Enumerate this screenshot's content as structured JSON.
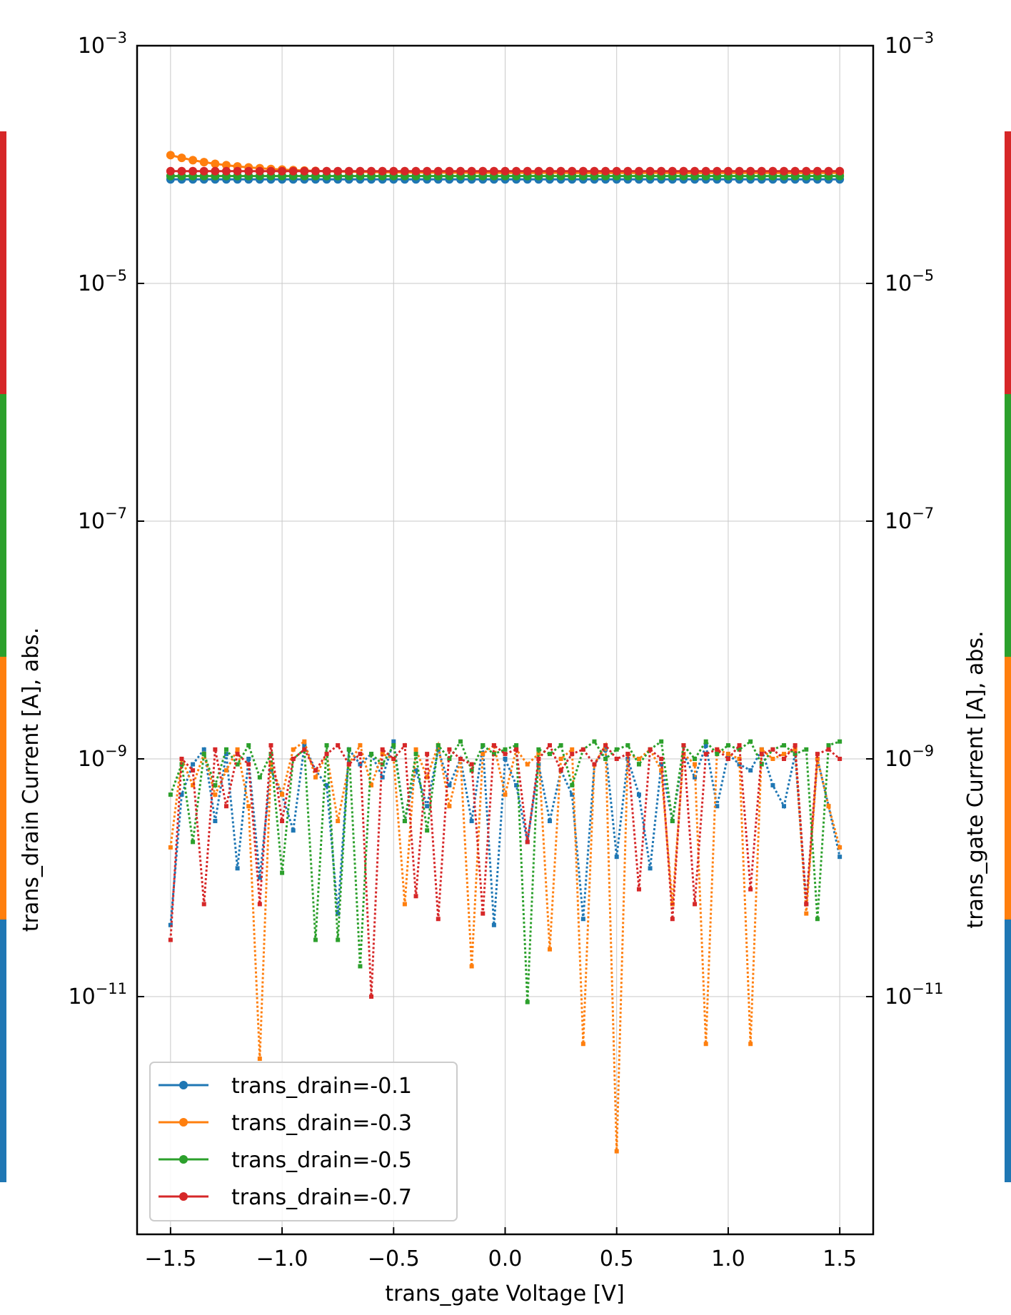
{
  "chart_data": {
    "type": "line",
    "xlabel": "trans_gate Voltage [V]",
    "ylabel_left": "trans_drain Current [A], abs.",
    "ylabel_right": "trans_gate Current [A], abs.",
    "xlim": [
      -1.65,
      1.65
    ],
    "ylim": [
      1e-13,
      0.001
    ],
    "y_scale": "log",
    "x_ticks": [
      {
        "value": -1.5,
        "label": "−1.5"
      },
      {
        "value": -1.0,
        "label": "−1.0"
      },
      {
        "value": -0.5,
        "label": "−0.5"
      },
      {
        "value": 0.0,
        "label": "0.0"
      },
      {
        "value": 0.5,
        "label": "0.5"
      },
      {
        "value": 1.0,
        "label": "1.0"
      },
      {
        "value": 1.5,
        "label": "1.5"
      }
    ],
    "y_ticks": [
      {
        "exp": -3,
        "base": "10",
        "sup": "−3"
      },
      {
        "exp": -5,
        "base": "10",
        "sup": "−5"
      },
      {
        "exp": -7,
        "base": "10",
        "sup": "−7"
      },
      {
        "exp": -9,
        "base": "10",
        "sup": "−9"
      },
      {
        "exp": -11,
        "base": "10",
        "sup": "−11"
      }
    ],
    "grid": true,
    "legend_position": "lower-left",
    "colors": [
      "#1f77b4",
      "#ff7f0e",
      "#2ca02c",
      "#d62728"
    ],
    "series": [
      {
        "name": "trans_drain=-0.1",
        "color": "#1f77b4",
        "drain_current": {
          "start": 7.5e-05,
          "end": 7.5e-05
        },
        "gate_current_x": [
          -1.5,
          -1.45,
          -1.4,
          -1.35,
          -1.3,
          -1.25,
          -1.2,
          -1.15,
          -1.1,
          -1.05,
          -1.0,
          -0.95,
          -0.9,
          -0.85,
          -0.8,
          -0.75,
          -0.7,
          -0.65,
          -0.6,
          -0.55,
          -0.5,
          -0.45,
          -0.4,
          -0.35,
          -0.3,
          -0.25,
          -0.2,
          -0.15,
          -0.1,
          -0.05,
          0.0,
          0.05,
          0.1,
          0.15,
          0.2,
          0.25,
          0.3,
          0.35,
          0.4,
          0.45,
          0.5,
          0.55,
          0.6,
          0.65,
          0.7,
          0.75,
          0.8,
          0.85,
          0.9,
          0.95,
          1.0,
          1.05,
          1.1,
          1.15,
          1.2,
          1.25,
          1.3,
          1.35,
          1.4,
          1.45,
          1.5
        ],
        "gate_current_y": [
          4e-11,
          5e-10,
          9e-10,
          1.2e-09,
          3e-10,
          1.1e-09,
          1.2e-10,
          1e-09,
          1e-10,
          8e-10,
          5e-10,
          2.5e-10,
          1.3e-09,
          8e-10,
          6e-10,
          5e-11,
          1.2e-09,
          9e-10,
          1.1e-09,
          7e-10,
          1.4e-09,
          3e-10,
          8e-10,
          4e-10,
          1.2e-09,
          6e-10,
          1e-09,
          3e-10,
          1.3e-09,
          4e-11,
          1e-09,
          6e-10,
          2e-10,
          9e-10,
          3e-10,
          8e-10,
          5e-10,
          4.5e-11,
          9e-10,
          1.2e-09,
          1.5e-10,
          1e-09,
          5e-10,
          1.2e-10,
          9e-10,
          3e-10,
          1.1e-09,
          7e-10,
          1.3e-09,
          4e-10,
          1.1e-09,
          9e-10,
          8e-10,
          1.2e-09,
          6e-10,
          4e-10,
          1.1e-09,
          6e-11,
          1e-09,
          4e-10,
          1.5e-10
        ]
      },
      {
        "name": "trans_drain=-0.3",
        "color": "#ff7f0e",
        "drain_current": {
          "start": 0.00012,
          "end": 8.5e-05
        },
        "gate_current_x": [
          -1.5,
          -1.45,
          -1.4,
          -1.35,
          -1.3,
          -1.25,
          -1.2,
          -1.15,
          -1.1,
          -1.05,
          -1.0,
          -0.95,
          -0.9,
          -0.85,
          -0.8,
          -0.75,
          -0.7,
          -0.65,
          -0.6,
          -0.55,
          -0.5,
          -0.45,
          -0.4,
          -0.35,
          -0.3,
          -0.25,
          -0.2,
          -0.15,
          -0.1,
          -0.05,
          0.0,
          0.05,
          0.1,
          0.15,
          0.2,
          0.25,
          0.3,
          0.35,
          0.4,
          0.45,
          0.5,
          0.55,
          0.6,
          0.65,
          0.7,
          0.75,
          0.8,
          0.85,
          0.9,
          0.95,
          1.0,
          1.05,
          1.1,
          1.15,
          1.2,
          1.25,
          1.3,
          1.35,
          1.4,
          1.45,
          1.5
        ],
        "gate_current_y": [
          1.8e-10,
          1e-09,
          6e-10,
          1.1e-09,
          5e-10,
          8e-10,
          1.2e-09,
          4e-10,
          3e-12,
          9e-10,
          5e-10,
          1.2e-09,
          1.4e-09,
          7e-10,
          1.1e-09,
          3e-10,
          9e-10,
          1.3e-09,
          6e-10,
          1.1e-09,
          1e-09,
          6e-11,
          1.2e-09,
          7e-10,
          1.3e-09,
          4e-10,
          1e-09,
          1.8e-11,
          1.1e-09,
          1.3e-09,
          5e-10,
          1.2e-09,
          9e-10,
          1.1e-09,
          2.5e-11,
          1e-09,
          1.2e-09,
          4e-12,
          9e-10,
          1.3e-09,
          5e-13,
          1.1e-09,
          1e-09,
          1.2e-09,
          8e-10,
          6e-11,
          1.1e-09,
          9e-10,
          4e-12,
          1.2e-09,
          1.1e-09,
          1e-09,
          4e-12,
          1.2e-09,
          1e-09,
          1.1e-09,
          1.2e-09,
          5e-11,
          1e-09,
          4e-10,
          1.8e-10
        ]
      },
      {
        "name": "trans_drain=-0.5",
        "color": "#2ca02c",
        "drain_current": {
          "start": 8e-05,
          "end": 8e-05
        },
        "gate_current_x": [
          -1.5,
          -1.45,
          -1.4,
          -1.35,
          -1.3,
          -1.25,
          -1.2,
          -1.15,
          -1.1,
          -1.05,
          -1.0,
          -0.95,
          -0.9,
          -0.85,
          -0.8,
          -0.75,
          -0.7,
          -0.65,
          -0.6,
          -0.55,
          -0.5,
          -0.45,
          -0.4,
          -0.35,
          -0.3,
          -0.25,
          -0.2,
          -0.15,
          -0.1,
          -0.05,
          0.0,
          0.05,
          0.1,
          0.15,
          0.2,
          0.25,
          0.3,
          0.35,
          0.4,
          0.45,
          0.5,
          0.55,
          0.6,
          0.65,
          0.7,
          0.75,
          0.8,
          0.85,
          0.9,
          0.95,
          1.0,
          1.05,
          1.1,
          1.15,
          1.2,
          1.25,
          1.3,
          1.35,
          1.4,
          1.45,
          1.5
        ],
        "gate_current_y": [
          5e-10,
          9e-10,
          2e-10,
          1.1e-09,
          6e-10,
          1.2e-09,
          9e-10,
          1.3e-09,
          7e-10,
          1.1e-09,
          1.1e-10,
          1e-09,
          1.2e-09,
          3e-11,
          1.3e-09,
          3e-11,
          1.2e-09,
          1.8e-11,
          1.1e-09,
          9e-10,
          1.3e-09,
          3e-10,
          1.1e-09,
          2.5e-10,
          1.3e-09,
          1e-09,
          1.4e-09,
          8e-10,
          1.3e-09,
          1.1e-09,
          1.2e-09,
          1.3e-09,
          9e-12,
          1.2e-09,
          1.1e-09,
          1.3e-09,
          6e-10,
          1.2e-09,
          1.4e-09,
          1e-09,
          1.2e-09,
          1.3e-09,
          9e-10,
          1.2e-09,
          1.4e-09,
          3e-10,
          1.3e-09,
          1e-09,
          1.4e-09,
          1.1e-09,
          1.3e-09,
          1.2e-09,
          1.4e-09,
          9e-10,
          1.2e-09,
          1.3e-09,
          1.1e-09,
          1.2e-09,
          4.5e-11,
          1.3e-09,
          1.4e-09
        ]
      },
      {
        "name": "trans_drain=-0.7",
        "color": "#d62728",
        "drain_current": {
          "start": 8.8e-05,
          "end": 8.8e-05
        },
        "gate_current_x": [
          -1.5,
          -1.45,
          -1.4,
          -1.35,
          -1.3,
          -1.25,
          -1.2,
          -1.15,
          -1.1,
          -1.05,
          -1.0,
          -0.95,
          -0.9,
          -0.85,
          -0.8,
          -0.75,
          -0.7,
          -0.65,
          -0.6,
          -0.55,
          -0.5,
          -0.45,
          -0.4,
          -0.35,
          -0.3,
          -0.25,
          -0.2,
          -0.15,
          -0.1,
          -0.05,
          0.0,
          0.05,
          0.1,
          0.15,
          0.2,
          0.25,
          0.3,
          0.35,
          0.4,
          0.45,
          0.5,
          0.55,
          0.6,
          0.65,
          0.7,
          0.75,
          0.8,
          0.85,
          0.9,
          0.95,
          1.0,
          1.05,
          1.1,
          1.15,
          1.2,
          1.25,
          1.3,
          1.35,
          1.4,
          1.45,
          1.5
        ],
        "gate_current_y": [
          3e-11,
          1e-09,
          8e-10,
          6e-11,
          1.2e-09,
          4e-10,
          1.1e-09,
          9e-10,
          6e-11,
          1.3e-09,
          3e-10,
          1e-09,
          1.2e-09,
          8e-10,
          1.1e-09,
          1.3e-09,
          9e-10,
          1.1e-09,
          1e-11,
          1.2e-09,
          1e-09,
          1.3e-09,
          7e-11,
          1.1e-09,
          4.5e-11,
          1.2e-09,
          1e-09,
          9e-10,
          5e-11,
          1.3e-09,
          1.1e-09,
          1.2e-09,
          2e-10,
          1e-09,
          1.3e-09,
          8e-10,
          1.1e-09,
          1.2e-09,
          9e-10,
          1.3e-09,
          1e-09,
          1.1e-09,
          8e-11,
          1.2e-09,
          1e-09,
          4.5e-11,
          1.3e-09,
          6e-11,
          1.1e-09,
          1.2e-09,
          1e-09,
          1.3e-09,
          8e-11,
          1.1e-09,
          1.2e-09,
          1e-09,
          1.3e-09,
          6e-11,
          1.1e-09,
          1.2e-09,
          1e-09
        ]
      }
    ]
  }
}
